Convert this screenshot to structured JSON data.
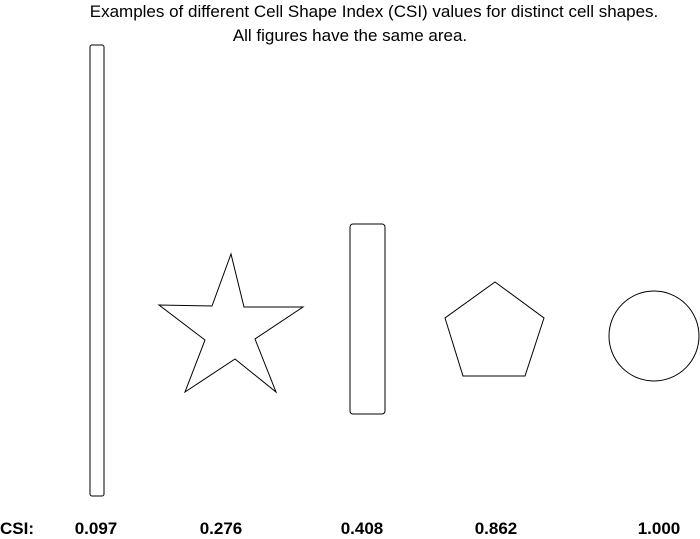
{
  "title": {
    "line1": "Examples of different Cell Shape Index (CSI) values for distinct cell shapes.",
    "line2": "All figures have the same area."
  },
  "csi_row_label": "CSI:",
  "shapes": [
    {
      "shape": "tall-thin-rectangle",
      "csi": "0.097"
    },
    {
      "shape": "star",
      "csi": "0.276"
    },
    {
      "shape": "rectangle",
      "csi": "0.408"
    },
    {
      "shape": "pentagon",
      "csi": "0.862"
    },
    {
      "shape": "circle",
      "csi": "1.000"
    }
  ],
  "colors": {
    "stroke": "#000000",
    "fill": "#ffffff",
    "background": "#ffffff"
  }
}
